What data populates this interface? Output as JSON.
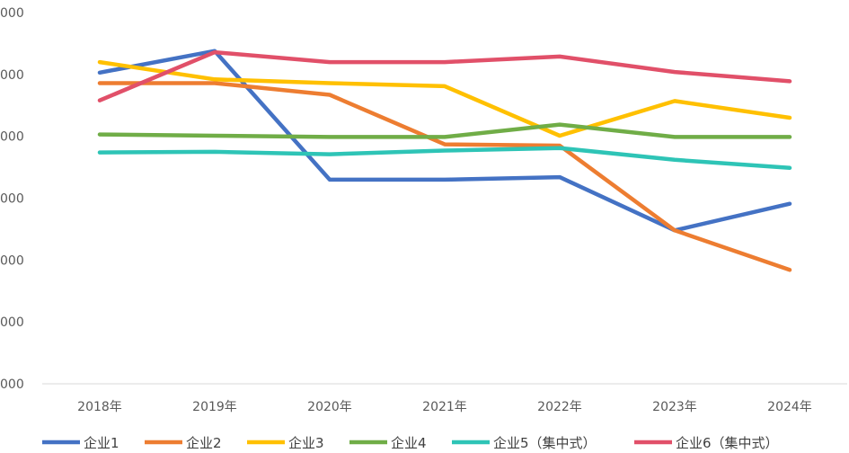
{
  "chart_data": {
    "type": "line",
    "title": "",
    "xlabel": "",
    "ylabel": "",
    "categories": [
      "2018年",
      "2019年",
      "2020年",
      "2021年",
      "2022年",
      "2023年",
      "2024年"
    ],
    "y_tick_labels": [
      "000",
      "000",
      "000",
      "000",
      "000",
      "000",
      "000"
    ],
    "ylim": [
      0,
      6
    ],
    "grid": false,
    "legend_position": "bottom",
    "series": [
      {
        "name": "企业1",
        "color": "#4472C4",
        "values": [
          5.03,
          5.38,
          3.3,
          3.3,
          3.34,
          2.48,
          2.91
        ]
      },
      {
        "name": "企业2",
        "color": "#ED7D31",
        "values": [
          4.86,
          4.86,
          4.67,
          3.87,
          3.85,
          2.48,
          1.84
        ]
      },
      {
        "name": "企业3",
        "color": "#FFC000",
        "values": [
          5.2,
          4.92,
          4.86,
          4.81,
          4.01,
          4.57,
          4.3
        ]
      },
      {
        "name": "企业4",
        "color": "#70AD47",
        "values": [
          4.03,
          4.01,
          3.99,
          3.99,
          4.19,
          3.99,
          3.99
        ]
      },
      {
        "name": "企业5（集中式）",
        "color": "#2EC4B6",
        "values": [
          3.74,
          3.75,
          3.71,
          3.77,
          3.81,
          3.62,
          3.49
        ]
      },
      {
        "name": "企业6（集中式）",
        "color": "#E15069",
        "values": [
          4.58,
          5.36,
          5.2,
          5.2,
          5.29,
          5.04,
          4.89
        ]
      }
    ]
  }
}
